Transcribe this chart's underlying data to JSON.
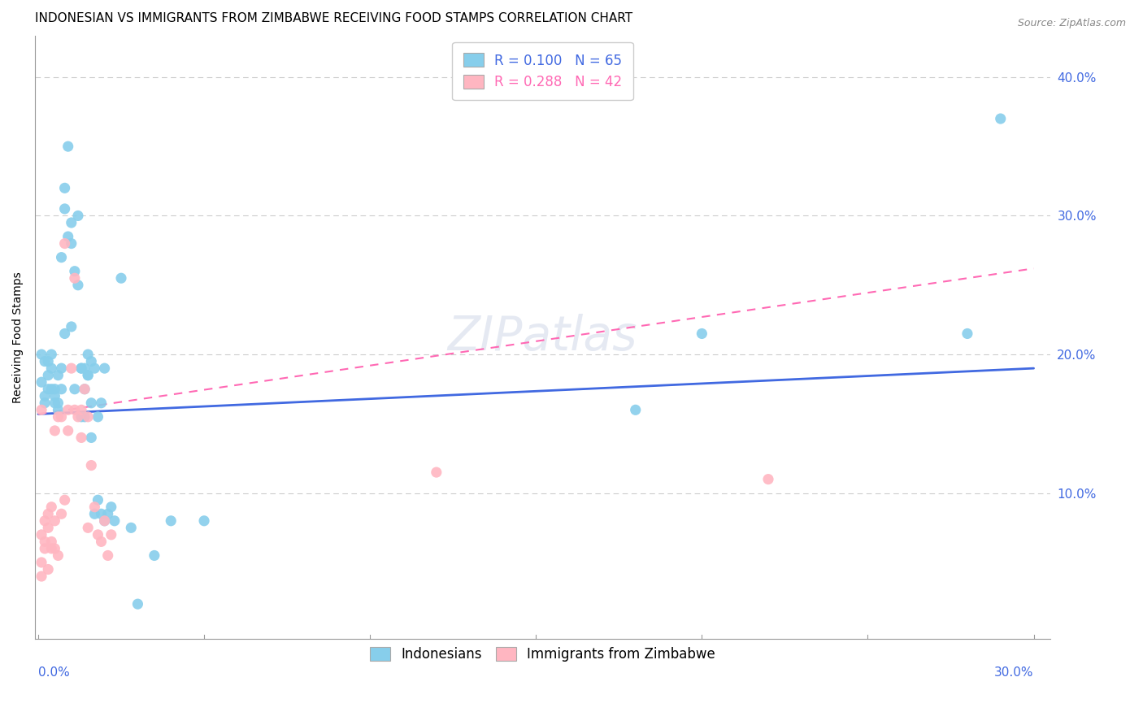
{
  "title": "INDONESIAN VS IMMIGRANTS FROM ZIMBABWE RECEIVING FOOD STAMPS CORRELATION CHART",
  "source": "Source: ZipAtlas.com",
  "ylabel": "Receiving Food Stamps",
  "xlim": [
    0.0,
    0.3
  ],
  "ylim": [
    -0.005,
    0.43
  ],
  "indonesian_color": "#87CEEB",
  "zimbabwe_color": "#FFB6C1",
  "background_color": "#ffffff",
  "grid_color": "#cccccc",
  "title_fontsize": 11,
  "axis_label_fontsize": 10,
  "tick_fontsize": 11,
  "legend_fontsize": 12,
  "indo_line_start": 0.157,
  "indo_line_end": 0.19,
  "zimb_line_start": 0.157,
  "zimb_line_end": 0.262,
  "indonesian_scatter_x": [
    0.001,
    0.002,
    0.001,
    0.003,
    0.002,
    0.003,
    0.004,
    0.003,
    0.002,
    0.004,
    0.005,
    0.004,
    0.005,
    0.006,
    0.005,
    0.006,
    0.007,
    0.006,
    0.008,
    0.007,
    0.007,
    0.008,
    0.009,
    0.008,
    0.009,
    0.01,
    0.01,
    0.011,
    0.01,
    0.011,
    0.012,
    0.013,
    0.012,
    0.013,
    0.014,
    0.013,
    0.014,
    0.015,
    0.014,
    0.015,
    0.016,
    0.015,
    0.016,
    0.017,
    0.016,
    0.017,
    0.018,
    0.019,
    0.018,
    0.02,
    0.019,
    0.021,
    0.022,
    0.02,
    0.023,
    0.025,
    0.028,
    0.03,
    0.035,
    0.04,
    0.05,
    0.18,
    0.2,
    0.28,
    0.29
  ],
  "indonesian_scatter_y": [
    0.2,
    0.195,
    0.18,
    0.175,
    0.17,
    0.195,
    0.19,
    0.185,
    0.165,
    0.175,
    0.17,
    0.2,
    0.175,
    0.185,
    0.165,
    0.165,
    0.19,
    0.16,
    0.215,
    0.175,
    0.27,
    0.305,
    0.285,
    0.32,
    0.35,
    0.22,
    0.295,
    0.175,
    0.28,
    0.26,
    0.3,
    0.19,
    0.25,
    0.19,
    0.175,
    0.155,
    0.19,
    0.185,
    0.155,
    0.185,
    0.165,
    0.2,
    0.195,
    0.19,
    0.14,
    0.085,
    0.095,
    0.085,
    0.155,
    0.19,
    0.165,
    0.085,
    0.09,
    0.08,
    0.08,
    0.255,
    0.075,
    0.02,
    0.055,
    0.08,
    0.08,
    0.16,
    0.215,
    0.215,
    0.37
  ],
  "zimbabwe_scatter_x": [
    0.001,
    0.001,
    0.001,
    0.001,
    0.002,
    0.002,
    0.002,
    0.003,
    0.003,
    0.003,
    0.004,
    0.004,
    0.004,
    0.005,
    0.005,
    0.005,
    0.006,
    0.006,
    0.007,
    0.007,
    0.008,
    0.008,
    0.009,
    0.009,
    0.01,
    0.011,
    0.011,
    0.012,
    0.013,
    0.013,
    0.014,
    0.015,
    0.015,
    0.016,
    0.017,
    0.018,
    0.019,
    0.02,
    0.021,
    0.022,
    0.12,
    0.22
  ],
  "zimbabwe_scatter_y": [
    0.16,
    0.07,
    0.05,
    0.04,
    0.065,
    0.08,
    0.06,
    0.085,
    0.075,
    0.045,
    0.065,
    0.09,
    0.06,
    0.08,
    0.145,
    0.06,
    0.055,
    0.155,
    0.085,
    0.155,
    0.095,
    0.28,
    0.16,
    0.145,
    0.19,
    0.255,
    0.16,
    0.155,
    0.16,
    0.14,
    0.175,
    0.155,
    0.075,
    0.12,
    0.09,
    0.07,
    0.065,
    0.08,
    0.055,
    0.07,
    0.115,
    0.11
  ]
}
